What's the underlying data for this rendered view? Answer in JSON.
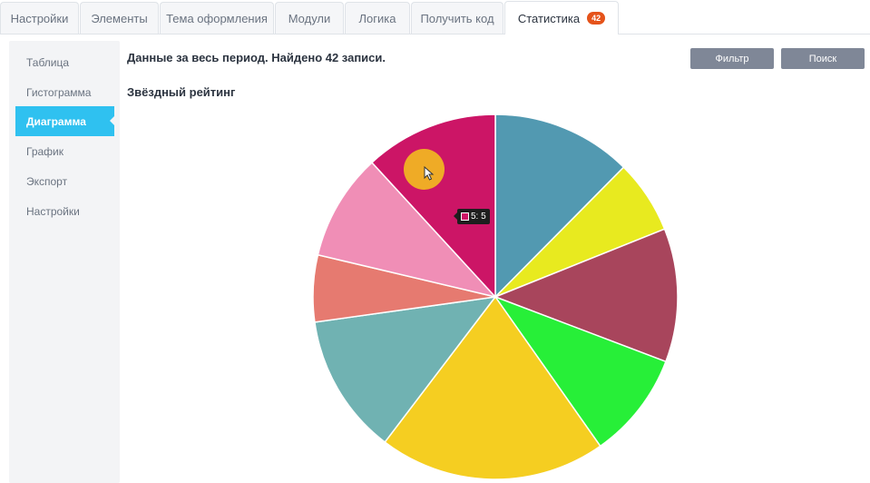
{
  "tabs": [
    {
      "label": "Настройки",
      "active": false
    },
    {
      "label": "Элементы",
      "active": false
    },
    {
      "label": "Тема оформления",
      "active": false
    },
    {
      "label": "Модули",
      "active": false
    },
    {
      "label": "Логика",
      "active": false
    },
    {
      "label": "Получить код",
      "active": false
    },
    {
      "label": "Статистика",
      "active": true,
      "badge": "42"
    }
  ],
  "sidebar": {
    "items": [
      {
        "label": "Таблица",
        "active": false
      },
      {
        "label": "Гистограмма",
        "active": false
      },
      {
        "label": "Диаграмма",
        "active": true
      },
      {
        "label": "График",
        "active": false
      },
      {
        "label": "Экспорт",
        "active": false
      },
      {
        "label": "Настройки",
        "active": false
      }
    ]
  },
  "main": {
    "summary": "Данные за весь период. Найдено 42 записи.",
    "filter_label": "Фильтр",
    "search_label": "Поиск",
    "chart_title": "Звёздный рейтинг"
  },
  "tooltip": {
    "text": "5: 5",
    "color": "#cc1566"
  },
  "chart_data": {
    "type": "pie",
    "title": "Звёздный рейтинг",
    "values": [
      5.25,
      2.75,
      5,
      4,
      8.5,
      5.25,
      2.5,
      4,
      5
    ],
    "colors": [
      "#5299b1",
      "#e8ea1f",
      "#a8455c",
      "#27ef38",
      "#f5ce21",
      "#70b2b2",
      "#e67a70",
      "#f08eb6",
      "#cc1566"
    ],
    "highlighted": {
      "label": "5",
      "value": 5
    }
  }
}
